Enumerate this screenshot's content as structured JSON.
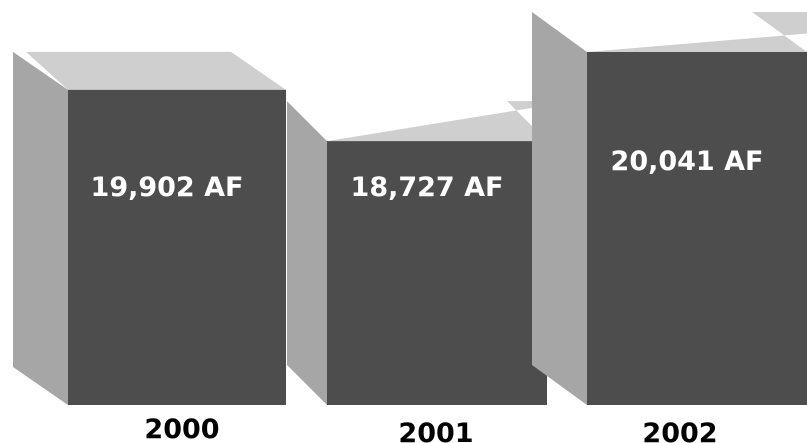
{
  "chart_data": {
    "type": "bar",
    "style": "3d-box",
    "categories": [
      "2000",
      "2001",
      "2002"
    ],
    "values": [
      19902,
      18727,
      20041
    ],
    "data_labels": [
      "19,902 AF",
      "18,727 AF",
      "20,041 AF"
    ],
    "title": "",
    "xlabel": "",
    "ylabel": "",
    "grid": false,
    "legend": "none",
    "colors": {
      "front": "#4d4d4d",
      "side": "#a6a6a6",
      "top": "#cfcfcf",
      "label_text": "#ffffff",
      "tick_text": "#000000"
    }
  }
}
